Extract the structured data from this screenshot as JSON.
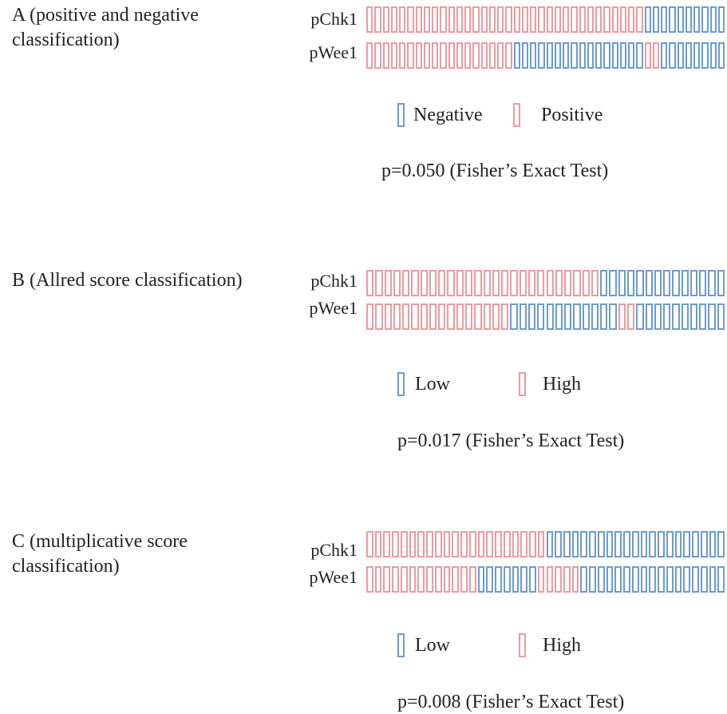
{
  "colors": {
    "negative_low": "#6b9bd1",
    "positive_high": "#ee9a9e",
    "fill": "#ffffff"
  },
  "chart_data": [
    {
      "type": "heatmap",
      "title": "A (positive and negative classification)",
      "rows": [
        "pChk1",
        "pWee1"
      ],
      "n_samples": 44,
      "categories": [
        "Negative",
        "Positive"
      ],
      "row_values": {
        "pChk1": "PPPPPPPPPPPPPPPPPPPPPPPPPPPPPPPPPPNNNNNNNNNN",
        "pWee1": "PPPPPPPPPPPPPPPPPPNNNNNNNNNNNNNNNNPPNNNNNNNN"
      },
      "legend": [
        {
          "code": "N",
          "label": "Negative"
        },
        {
          "code": "P",
          "label": "Positive"
        }
      ],
      "annotation": "p=0.050 (Fisher’s Exact Test)"
    },
    {
      "type": "heatmap",
      "title": "B (Allred score classification)",
      "rows": [
        "pChk1",
        "pWee1"
      ],
      "n_samples": 40,
      "categories": [
        "Low",
        "High"
      ],
      "row_values": {
        "pChk1": "HHHHHHHHHHHHHHHHHHHHHHHHHHLLLLLLLLLLLLLL",
        "pWee1": "HHHHHHHHHHHHHHHHLLLLLLLLLLLLHHLLLLLLLLLL"
      },
      "legend": [
        {
          "code": "L",
          "label": "Low"
        },
        {
          "code": "H",
          "label": "High"
        }
      ],
      "annotation": "p=0.017 (Fisher’s Exact Test)"
    },
    {
      "type": "heatmap",
      "title": "C (multiplicative score classification)",
      "rows": [
        "pChk1",
        "pWee1"
      ],
      "n_samples": 42,
      "categories": [
        "Low",
        "High"
      ],
      "row_values": {
        "pChk1": "HHHHHHHHHHHHHHHHHHHHHLLLLLLLLLLLLLLLLLLLLL",
        "pWee1": "HHHHHHHHHHHHHLLLLLLLHHHHHLLLLLLLLLLLLLLLLL"
      },
      "legend": [
        {
          "code": "L",
          "label": "Low"
        },
        {
          "code": "H",
          "label": "High"
        }
      ],
      "annotation": "p=0.008 (Fisher’s Exact Test)"
    }
  ]
}
